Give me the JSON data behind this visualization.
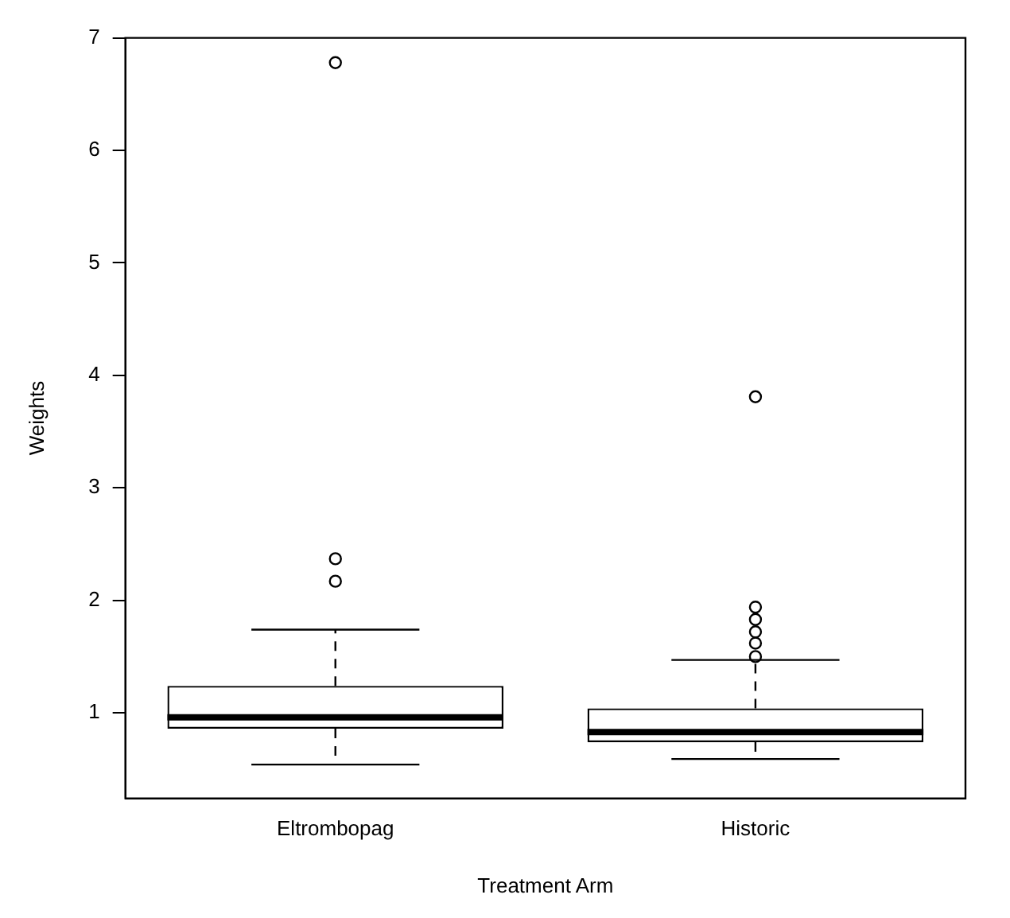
{
  "chart_data": {
    "type": "box",
    "xlabel": "Treatment Arm",
    "ylabel": "Weights",
    "categories": [
      "Eltrombopag",
      "Historic"
    ],
    "boxes": [
      {
        "low": 0.54,
        "q1": 0.86,
        "median": 0.96,
        "q3": 1.24,
        "high": 1.74,
        "outliers": [
          2.17,
          2.37,
          6.78
        ]
      },
      {
        "low": 0.59,
        "q1": 0.74,
        "median": 0.83,
        "q3": 1.04,
        "high": 1.47,
        "outliers": [
          1.5,
          1.62,
          1.72,
          1.83,
          1.94,
          3.81
        ]
      }
    ],
    "ylim": [
      0.24,
      7
    ],
    "yticks": [
      1,
      2,
      3,
      4,
      5,
      6,
      7
    ],
    "grid": false,
    "legend": false
  }
}
